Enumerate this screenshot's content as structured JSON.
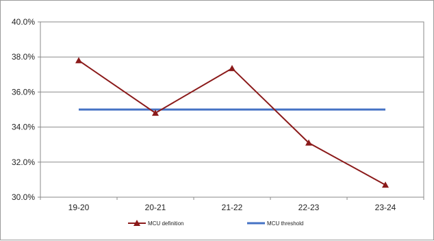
{
  "chart_data": {
    "type": "line",
    "categories": [
      "19-20",
      "20-21",
      "21-22",
      "22-23",
      "23-24"
    ],
    "series": [
      {
        "name": "MCU definition",
        "values": [
          37.8,
          34.8,
          37.35,
          33.1,
          30.7
        ],
        "color": "#8b1a1a",
        "marker": "triangle"
      },
      {
        "name": "MCU threshold",
        "values": [
          35.0,
          35.0,
          35.0,
          35.0,
          35.0
        ],
        "color": "#4472c4",
        "marker": "none"
      }
    ],
    "yticks": [
      "30.0%",
      "32.0%",
      "34.0%",
      "36.0%",
      "38.0%",
      "40.0%"
    ],
    "ylim": [
      30,
      40
    ],
    "ystep": 2,
    "grid": true,
    "legend_position": "bottom"
  }
}
